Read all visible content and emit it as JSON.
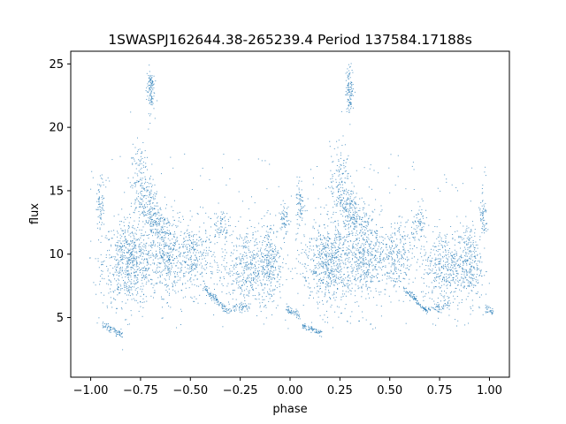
{
  "chart_data": {
    "type": "scatter",
    "title": "1SWASPJ162644.38-265239.4 Period 137584.17188s",
    "xlabel": "phase",
    "ylabel": "flux",
    "xlim": [
      -1.1,
      1.1
    ],
    "ylim": [
      0.3,
      26.0
    ],
    "xticks": [
      -1.0,
      -0.75,
      -0.5,
      -0.25,
      0.0,
      0.25,
      0.5,
      0.75,
      1.0
    ],
    "xtick_labels": [
      "−1.00",
      "−0.75",
      "−0.50",
      "−0.25",
      "0.00",
      "0.25",
      "0.50",
      "0.75",
      "1.00"
    ],
    "yticks": [
      5,
      10,
      15,
      20,
      25
    ],
    "ytick_labels": [
      "5",
      "10",
      "15",
      "20",
      "25"
    ],
    "grid": false,
    "marker_color": "#1f77b4",
    "series": [
      {
        "name": "",
        "description_of_shape": "phase-folded light curve repeated over two cycles (phase -1 to 1)",
        "clusters_per_cycle": [
          {
            "phase_center": 0.2,
            "phase_width": 0.14,
            "flux_center": 9.3,
            "flux_spread": 1.7,
            "count": 700
          },
          {
            "phase_center": 0.38,
            "phase_width": 0.08,
            "flux_center": 10.0,
            "flux_spread": 1.6,
            "count": 350
          },
          {
            "phase_center": 0.52,
            "phase_width": 0.1,
            "flux_center": 9.6,
            "flux_spread": 1.4,
            "count": 300
          },
          {
            "phase_center": 0.78,
            "phase_width": 0.12,
            "flux_center": 9.0,
            "flux_spread": 1.5,
            "count": 400
          },
          {
            "phase_center": 0.9,
            "phase_width": 0.06,
            "flux_center": 9.3,
            "flux_spread": 1.6,
            "count": 250
          },
          {
            "phase_center": 0.25,
            "phase_width": 0.05,
            "flux_center": 15.5,
            "flux_spread": 1.6,
            "count": 160
          },
          {
            "phase_center": 0.3,
            "phase_width": 0.02,
            "flux_center": 23.0,
            "flux_spread": 0.9,
            "count": 110
          },
          {
            "phase_center": 0.3,
            "phase_width": 0.04,
            "flux_center": 13.5,
            "flux_spread": 1.0,
            "count": 120
          },
          {
            "phase_center": 0.05,
            "phase_width": 0.02,
            "flux_center": 14.0,
            "flux_spread": 1.0,
            "count": 70
          },
          {
            "phase_center": 0.35,
            "phase_width": 0.05,
            "flux_center": 12.5,
            "flux_spread": 0.6,
            "count": 60
          },
          {
            "phase_center": 0.65,
            "phase_width": 0.04,
            "flux_center": 12.3,
            "flux_spread": 0.7,
            "count": 70
          },
          {
            "phase_center": 0.97,
            "phase_width": 0.02,
            "flux_center": 12.8,
            "flux_spread": 0.8,
            "count": 60
          }
        ],
        "bands_per_cycle": [
          {
            "phase_from": 0.06,
            "phase_to": 0.16,
            "flux_from": 4.4,
            "flux_to": 3.7,
            "count": 70
          },
          {
            "phase_from": 0.57,
            "phase_to": 0.68,
            "flux_from": 7.3,
            "flux_to": 5.6,
            "count": 90
          },
          {
            "phase_from": 0.68,
            "phase_to": 0.8,
            "flux_from": 5.6,
            "flux_to": 6.0,
            "count": 60
          },
          {
            "phase_from": 0.98,
            "phase_to": 1.05,
            "flux_from": 5.7,
            "flux_to": 5.1,
            "count": 50
          }
        ]
      }
    ]
  }
}
